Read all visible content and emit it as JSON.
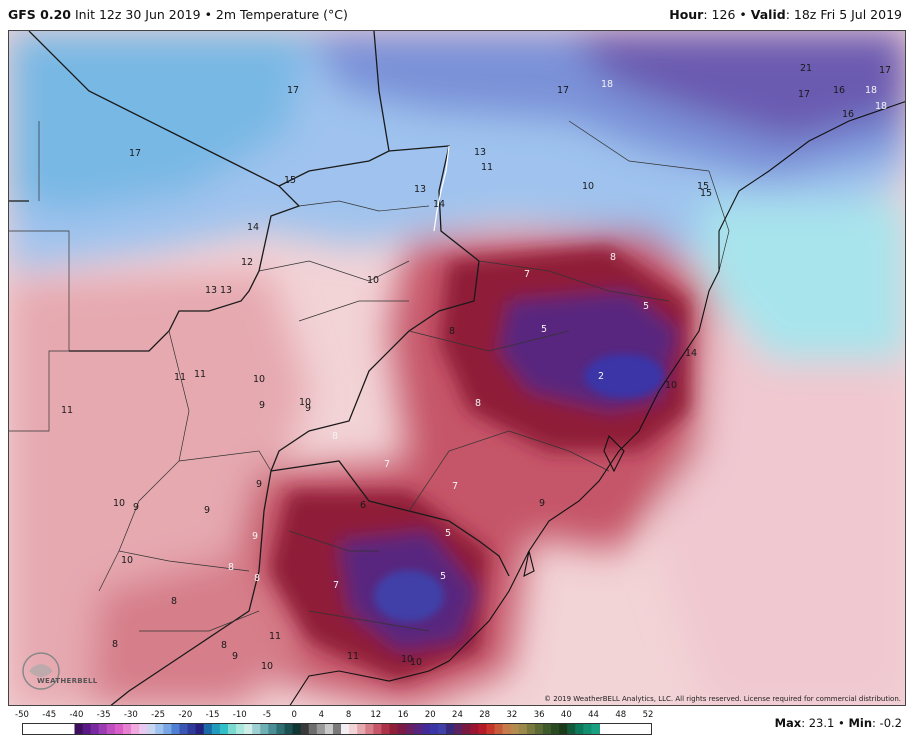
{
  "header": {
    "model": "GFS 0.20",
    "init": "Init 12z 30 Jun 2019",
    "sep": "•",
    "variable": "2m Temperature (°C)",
    "hour_label": "Hour",
    "hour_value": ": 126",
    "valid_label": "Valid",
    "valid_value": ": 18z Fri 5 Jul 2019"
  },
  "map": {
    "copyright": "© 2019 WeatherBELL Analytics, LLC. All rights reserved. License required for commercial distribution.",
    "logo_text": "WEATHERBELL",
    "labels": [
      "17",
      "17",
      "17",
      "18",
      "18",
      "21",
      "17",
      "16",
      "18",
      "17",
      "16",
      "13",
      "11",
      "10",
      "15",
      "15",
      "13",
      "14",
      "14",
      "15",
      "12",
      "13",
      "13",
      "10",
      "8",
      "8",
      "5",
      "5",
      "2",
      "7",
      "14",
      "10",
      "11",
      "11",
      "10",
      "9",
      "10",
      "9",
      "8",
      "11",
      "7",
      "8",
      "7",
      "6",
      "5",
      "5",
      "7",
      "9",
      "9",
      "9",
      "9",
      "10",
      "10",
      "9",
      "8",
      "8",
      "8",
      "8",
      "8",
      "9",
      "10",
      "11",
      "11",
      "10",
      "10"
    ]
  },
  "legend": {
    "scale": [
      "-50",
      "-45",
      "-40",
      "-35",
      "-30",
      "-25",
      "-20",
      "-15",
      "-10",
      "-5",
      "0",
      "4",
      "8",
      "12",
      "16",
      "20",
      "24",
      "28",
      "32",
      "36",
      "40",
      "44",
      "48",
      "52"
    ],
    "colors": [
      "#3d0f5c",
      "#5a1a86",
      "#7a2aa0",
      "#9b3cb3",
      "#bf4ebf",
      "#d95fc8",
      "#e880d2",
      "#f0a8dd",
      "#e8c9ef",
      "#c9d6f2",
      "#9fc3ee",
      "#78a6e4",
      "#4f7fd2",
      "#3b55b5",
      "#2e3a9a",
      "#251f7f",
      "#1a6aa8",
      "#1f9bbd",
      "#30bfc6",
      "#7ad9d0",
      "#a8e8dd",
      "#cfeee8",
      "#9ecfd3",
      "#6fb0b5",
      "#4a8f96",
      "#2e6f74",
      "#1c5152",
      "#0f3535",
      "#3a3a3a",
      "#6e6e6e",
      "#9a9a9a",
      "#c9c9c9",
      "#7a7a7a",
      "#f3eef2",
      "#f2d3d6",
      "#e6a9b0",
      "#d67e8a",
      "#c55567",
      "#ac3347",
      "#8f1f38",
      "#7a1a45",
      "#6a1f61",
      "#58257e",
      "#442a96",
      "#3a36a8",
      "#4040a8",
      "#39297a",
      "#5a2260",
      "#7a1a40",
      "#9a1630",
      "#b51a28",
      "#c5352a",
      "#c75a3a",
      "#c77a4a",
      "#b48a4f",
      "#9a8a4a",
      "#7a7a40",
      "#5c6a35",
      "#3f5a2a",
      "#2a4a22",
      "#1a3a1a",
      "#135a3a",
      "#0c7a5a",
      "#119070",
      "#1aa080"
    ],
    "max_label": "Max",
    "max_value": ": 23.1",
    "min_label": "Min",
    "min_value": ": -0.2",
    "sep": "•"
  }
}
